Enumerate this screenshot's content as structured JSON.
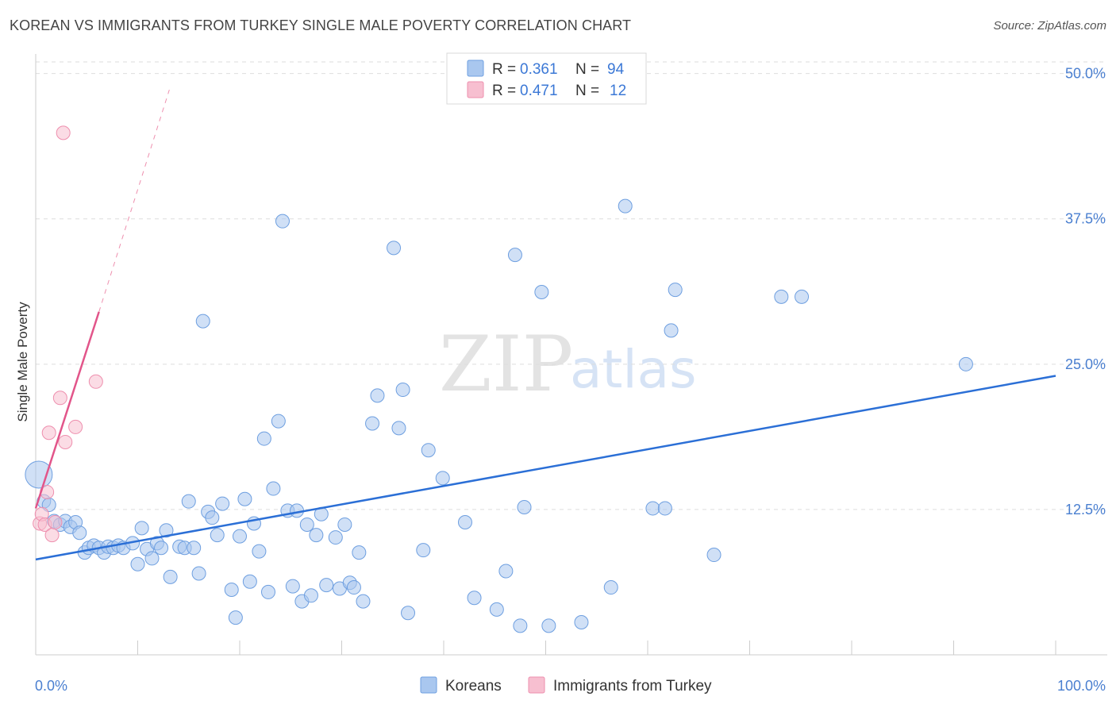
{
  "header": {
    "title": "KOREAN VS IMMIGRANTS FROM TURKEY SINGLE MALE POVERTY CORRELATION CHART",
    "source": "Source: ZipAtlas.com"
  },
  "watermark": {
    "zip": "ZIP",
    "atlas": "atlas"
  },
  "colors": {
    "koreans_fill": "#a9c7ef",
    "koreans_stroke": "#6e9fe0",
    "koreans_line": "#2b6fd6",
    "turkey_fill": "#f7bfd0",
    "turkey_stroke": "#ee8fae",
    "turkey_line": "#e2558a",
    "axis_label": "#4a7fd0",
    "grid": "#dddddd"
  },
  "legend": {
    "rows": [
      {
        "r_label": "R =",
        "r_value": "0.361",
        "n_label": "N =",
        "n_value": "94"
      },
      {
        "r_label": "R =",
        "r_value": "0.471",
        "n_label": "N =",
        "n_value": "12"
      }
    ]
  },
  "bottom_legend": {
    "koreans": "Koreans",
    "turkey": "Immigrants from Turkey"
  },
  "chart_data": {
    "type": "scatter",
    "title": "KOREAN VS IMMIGRANTS FROM TURKEY SINGLE MALE POVERTY CORRELATION CHART",
    "xlabel": "",
    "ylabel": "Single Male Poverty",
    "xlim": [
      0,
      100
    ],
    "ylim": [
      0,
      51
    ],
    "x_tick_labels": [
      "0.0%",
      "100.0%"
    ],
    "y_ticks": [
      12.5,
      25.0,
      37.5,
      50.0
    ],
    "y_tick_labels": [
      "12.5%",
      "25.0%",
      "37.5%",
      "50.0%"
    ],
    "grid": true,
    "series": [
      {
        "name": "Koreans",
        "r": 0.361,
        "n": 94,
        "trend": {
          "x": [
            0,
            100
          ],
          "y": [
            8.2,
            24.0
          ]
        },
        "points": [
          {
            "x": 0.3,
            "y": 15.5,
            "big": true
          },
          {
            "x": 0.8,
            "y": 13.2
          },
          {
            "x": 1.3,
            "y": 12.9
          },
          {
            "x": 1.8,
            "y": 11.5
          },
          {
            "x": 2.4,
            "y": 11.2
          },
          {
            "x": 2.9,
            "y": 11.5
          },
          {
            "x": 3.4,
            "y": 11.0
          },
          {
            "x": 3.9,
            "y": 11.4
          },
          {
            "x": 4.3,
            "y": 10.5
          },
          {
            "x": 4.8,
            "y": 8.8
          },
          {
            "x": 5.2,
            "y": 9.2
          },
          {
            "x": 5.7,
            "y": 9.4
          },
          {
            "x": 6.2,
            "y": 9.2
          },
          {
            "x": 6.7,
            "y": 8.8
          },
          {
            "x": 7.1,
            "y": 9.3
          },
          {
            "x": 7.6,
            "y": 9.2
          },
          {
            "x": 8.1,
            "y": 9.4
          },
          {
            "x": 8.6,
            "y": 9.2
          },
          {
            "x": 9.5,
            "y": 9.6
          },
          {
            "x": 10.0,
            "y": 7.8
          },
          {
            "x": 10.4,
            "y": 10.9
          },
          {
            "x": 10.9,
            "y": 9.1
          },
          {
            "x": 11.4,
            "y": 8.3
          },
          {
            "x": 11.9,
            "y": 9.6
          },
          {
            "x": 12.3,
            "y": 9.2
          },
          {
            "x": 12.8,
            "y": 10.7
          },
          {
            "x": 13.2,
            "y": 6.7
          },
          {
            "x": 14.1,
            "y": 9.3
          },
          {
            "x": 14.6,
            "y": 9.2
          },
          {
            "x": 15.0,
            "y": 13.2
          },
          {
            "x": 15.5,
            "y": 9.2
          },
          {
            "x": 16.0,
            "y": 7.0
          },
          {
            "x": 16.4,
            "y": 28.7
          },
          {
            "x": 16.9,
            "y": 12.3
          },
          {
            "x": 17.3,
            "y": 11.8
          },
          {
            "x": 17.8,
            "y": 10.3
          },
          {
            "x": 18.3,
            "y": 13.0
          },
          {
            "x": 19.2,
            "y": 5.6
          },
          {
            "x": 19.6,
            "y": 3.2
          },
          {
            "x": 20.0,
            "y": 10.2
          },
          {
            "x": 20.5,
            "y": 13.4
          },
          {
            "x": 21.0,
            "y": 6.3
          },
          {
            "x": 21.4,
            "y": 11.3
          },
          {
            "x": 21.9,
            "y": 8.9
          },
          {
            "x": 22.4,
            "y": 18.6
          },
          {
            "x": 22.8,
            "y": 5.4
          },
          {
            "x": 23.3,
            "y": 14.3
          },
          {
            "x": 23.8,
            "y": 20.1
          },
          {
            "x": 24.2,
            "y": 37.3
          },
          {
            "x": 24.7,
            "y": 12.4
          },
          {
            "x": 25.2,
            "y": 5.9
          },
          {
            "x": 25.6,
            "y": 12.4
          },
          {
            "x": 26.1,
            "y": 4.6
          },
          {
            "x": 26.6,
            "y": 11.2
          },
          {
            "x": 27.0,
            "y": 5.1
          },
          {
            "x": 27.5,
            "y": 10.3
          },
          {
            "x": 28.0,
            "y": 12.1
          },
          {
            "x": 28.5,
            "y": 6.0
          },
          {
            "x": 29.4,
            "y": 10.1
          },
          {
            "x": 29.8,
            "y": 5.7
          },
          {
            "x": 30.3,
            "y": 11.2
          },
          {
            "x": 30.8,
            "y": 6.2
          },
          {
            "x": 31.2,
            "y": 5.8
          },
          {
            "x": 31.7,
            "y": 8.8
          },
          {
            "x": 32.1,
            "y": 4.6
          },
          {
            "x": 33.0,
            "y": 19.9
          },
          {
            "x": 33.5,
            "y": 22.3
          },
          {
            "x": 35.1,
            "y": 35.0
          },
          {
            "x": 35.6,
            "y": 19.5
          },
          {
            "x": 36.0,
            "y": 22.8
          },
          {
            "x": 36.5,
            "y": 3.6
          },
          {
            "x": 38.0,
            "y": 9.0
          },
          {
            "x": 38.5,
            "y": 17.6
          },
          {
            "x": 39.9,
            "y": 15.2
          },
          {
            "x": 42.1,
            "y": 11.4
          },
          {
            "x": 43.0,
            "y": 4.9
          },
          {
            "x": 45.2,
            "y": 3.9
          },
          {
            "x": 46.1,
            "y": 7.2
          },
          {
            "x": 47.0,
            "y": 34.4
          },
          {
            "x": 47.5,
            "y": 2.5
          },
          {
            "x": 47.9,
            "y": 12.7
          },
          {
            "x": 49.6,
            "y": 31.2
          },
          {
            "x": 50.3,
            "y": 2.5
          },
          {
            "x": 53.5,
            "y": 2.8
          },
          {
            "x": 56.4,
            "y": 5.8
          },
          {
            "x": 57.8,
            "y": 38.6
          },
          {
            "x": 60.5,
            "y": 12.6
          },
          {
            "x": 61.7,
            "y": 12.6
          },
          {
            "x": 62.3,
            "y": 27.9
          },
          {
            "x": 62.7,
            "y": 31.4
          },
          {
            "x": 66.5,
            "y": 8.6
          },
          {
            "x": 73.1,
            "y": 30.8
          },
          {
            "x": 75.1,
            "y": 30.8
          },
          {
            "x": 91.2,
            "y": 25.0
          }
        ]
      },
      {
        "name": "Immigrants from Turkey",
        "r": 0.471,
        "n": 12,
        "trend": {
          "x": [
            0,
            6.2
          ],
          "y": [
            12.6,
            29.5
          ]
        },
        "trend_extended": {
          "x": [
            6.2,
            13.1
          ],
          "y": [
            29.5,
            48.6
          ]
        },
        "points": [
          {
            "x": 0.4,
            "y": 11.3
          },
          {
            "x": 0.6,
            "y": 12.1
          },
          {
            "x": 0.9,
            "y": 11.2
          },
          {
            "x": 1.1,
            "y": 14.0
          },
          {
            "x": 1.3,
            "y": 19.1
          },
          {
            "x": 1.6,
            "y": 10.3
          },
          {
            "x": 1.9,
            "y": 11.4
          },
          {
            "x": 2.4,
            "y": 22.1
          },
          {
            "x": 2.9,
            "y": 18.3
          },
          {
            "x": 3.9,
            "y": 19.6
          },
          {
            "x": 2.7,
            "y": 44.9
          },
          {
            "x": 5.9,
            "y": 23.5
          }
        ]
      }
    ]
  }
}
